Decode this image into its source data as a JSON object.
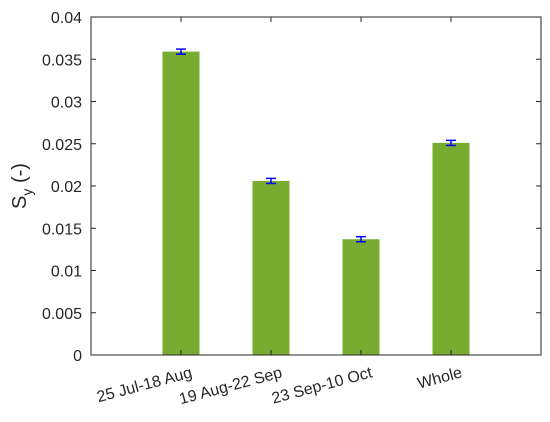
{
  "chart_data": {
    "type": "bar",
    "categories": [
      "25 Jul-18 Aug",
      "19 Aug-22 Sep",
      "23 Sep-10 Oct",
      "Whole"
    ],
    "values": [
      0.0359,
      0.0206,
      0.0137,
      0.0251
    ],
    "errors": [
      0.0003,
      0.0003,
      0.0003,
      0.0003
    ],
    "ylabel_main": "S",
    "ylabel_sub": "y",
    "ylabel_suffix": " (-)",
    "ylim": [
      0,
      0.04
    ],
    "yticks": [
      "0",
      "0.005",
      "0.01",
      "0.015",
      "0.02",
      "0.025",
      "0.03",
      "0.035",
      "0.04"
    ],
    "ytick_values": [
      0,
      0.005,
      0.01,
      0.015,
      0.02,
      0.025,
      0.03,
      0.035,
      0.04
    ],
    "grid": false,
    "colors": {
      "bar": "#77ac30",
      "errorbar": "#0000ff",
      "axis": "#262626"
    }
  }
}
